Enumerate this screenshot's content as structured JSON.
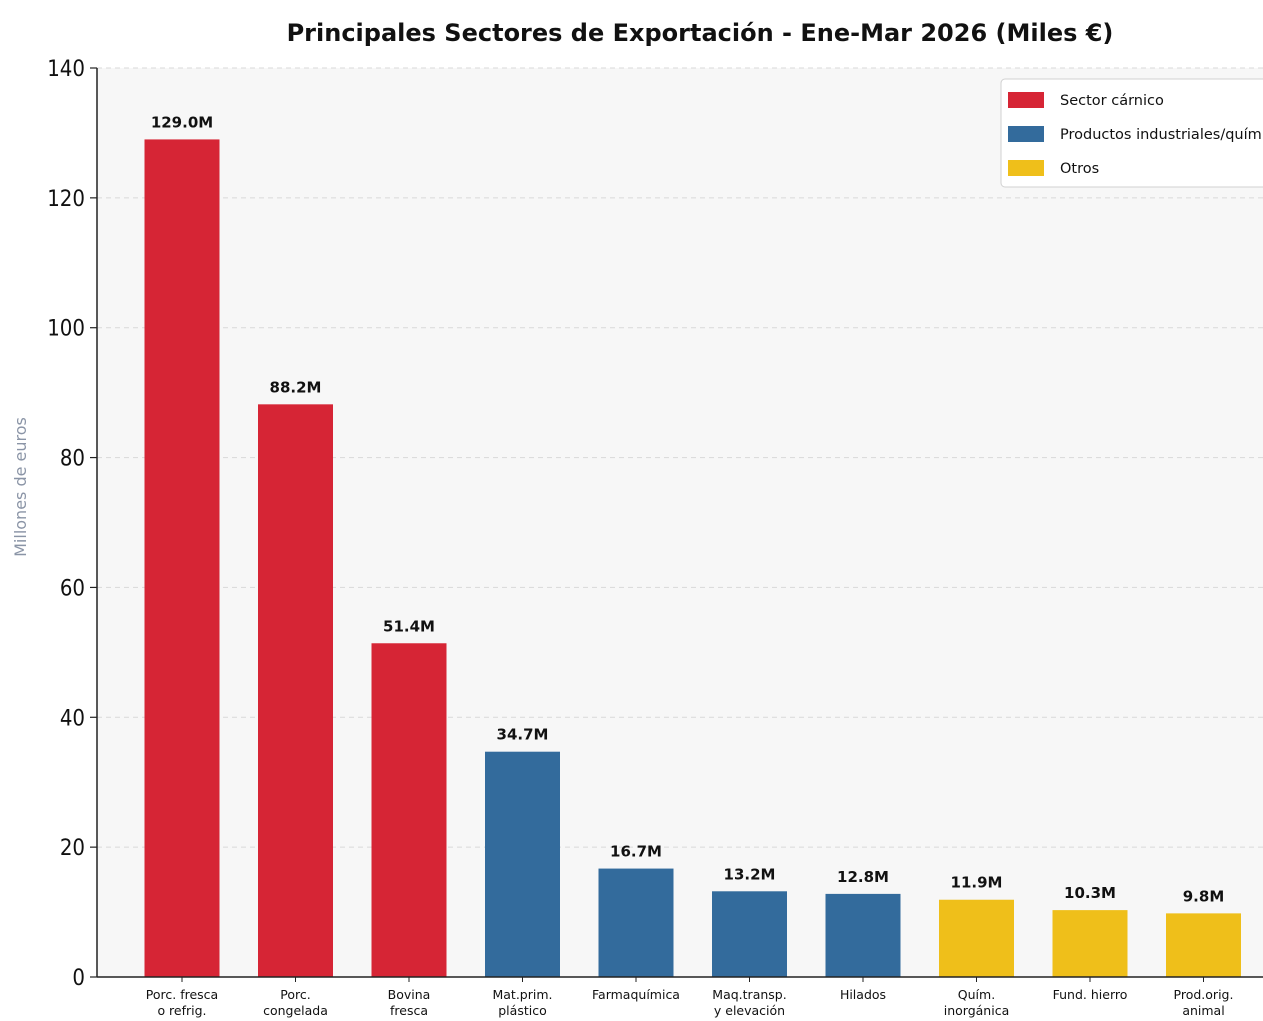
{
  "chart_data": {
    "type": "bar",
    "title": "Principales Sectores de Exportación - Ene-Mar 2026 (Miles €)",
    "ylabel": "Millones de euros",
    "xlabel": "",
    "ylim": [
      0,
      140
    ],
    "yticks": [
      "0",
      "20",
      "40",
      "60",
      "80",
      "100",
      "120",
      "140"
    ],
    "ytick_values": [
      0,
      20,
      40,
      60,
      80,
      100,
      120,
      140
    ],
    "grid": "horizontal dashed",
    "legend_position": "top-right",
    "categories": [
      [
        "Porc. fresca",
        "o refrig."
      ],
      [
        "Porc.",
        "congelada"
      ],
      [
        "Bovina",
        "fresca"
      ],
      [
        "Mat.prim.",
        "plástico"
      ],
      [
        "Farmaquímica"
      ],
      [
        "Maq.transp.",
        "y elevación"
      ],
      [
        "Hilados"
      ],
      [
        "Quím.",
        "inorgánica"
      ],
      [
        "Fund. hierro"
      ],
      [
        "Prod.orig.",
        "animal"
      ]
    ],
    "values": [
      129.0,
      88.2,
      51.4,
      34.7,
      16.7,
      13.2,
      12.8,
      11.9,
      10.3,
      9.8
    ],
    "data_labels": [
      "129.0M",
      "88.2M",
      "51.4M",
      "34.7M",
      "16.7M",
      "13.2M",
      "12.8M",
      "11.9M",
      "10.3M",
      "9.8M"
    ],
    "bar_groups": [
      0,
      0,
      0,
      1,
      1,
      1,
      1,
      2,
      2,
      2
    ],
    "legend": [
      {
        "name": "Sector cárnico",
        "color": "#d62535"
      },
      {
        "name": "Productos industriales/quím.",
        "color": "#336b9c"
      },
      {
        "name": "Otros",
        "color": "#efbf1a"
      }
    ],
    "colors": {
      "plot_background": "#f7f7f7",
      "grid": "#d9d9d9",
      "axis": "#222222"
    }
  }
}
